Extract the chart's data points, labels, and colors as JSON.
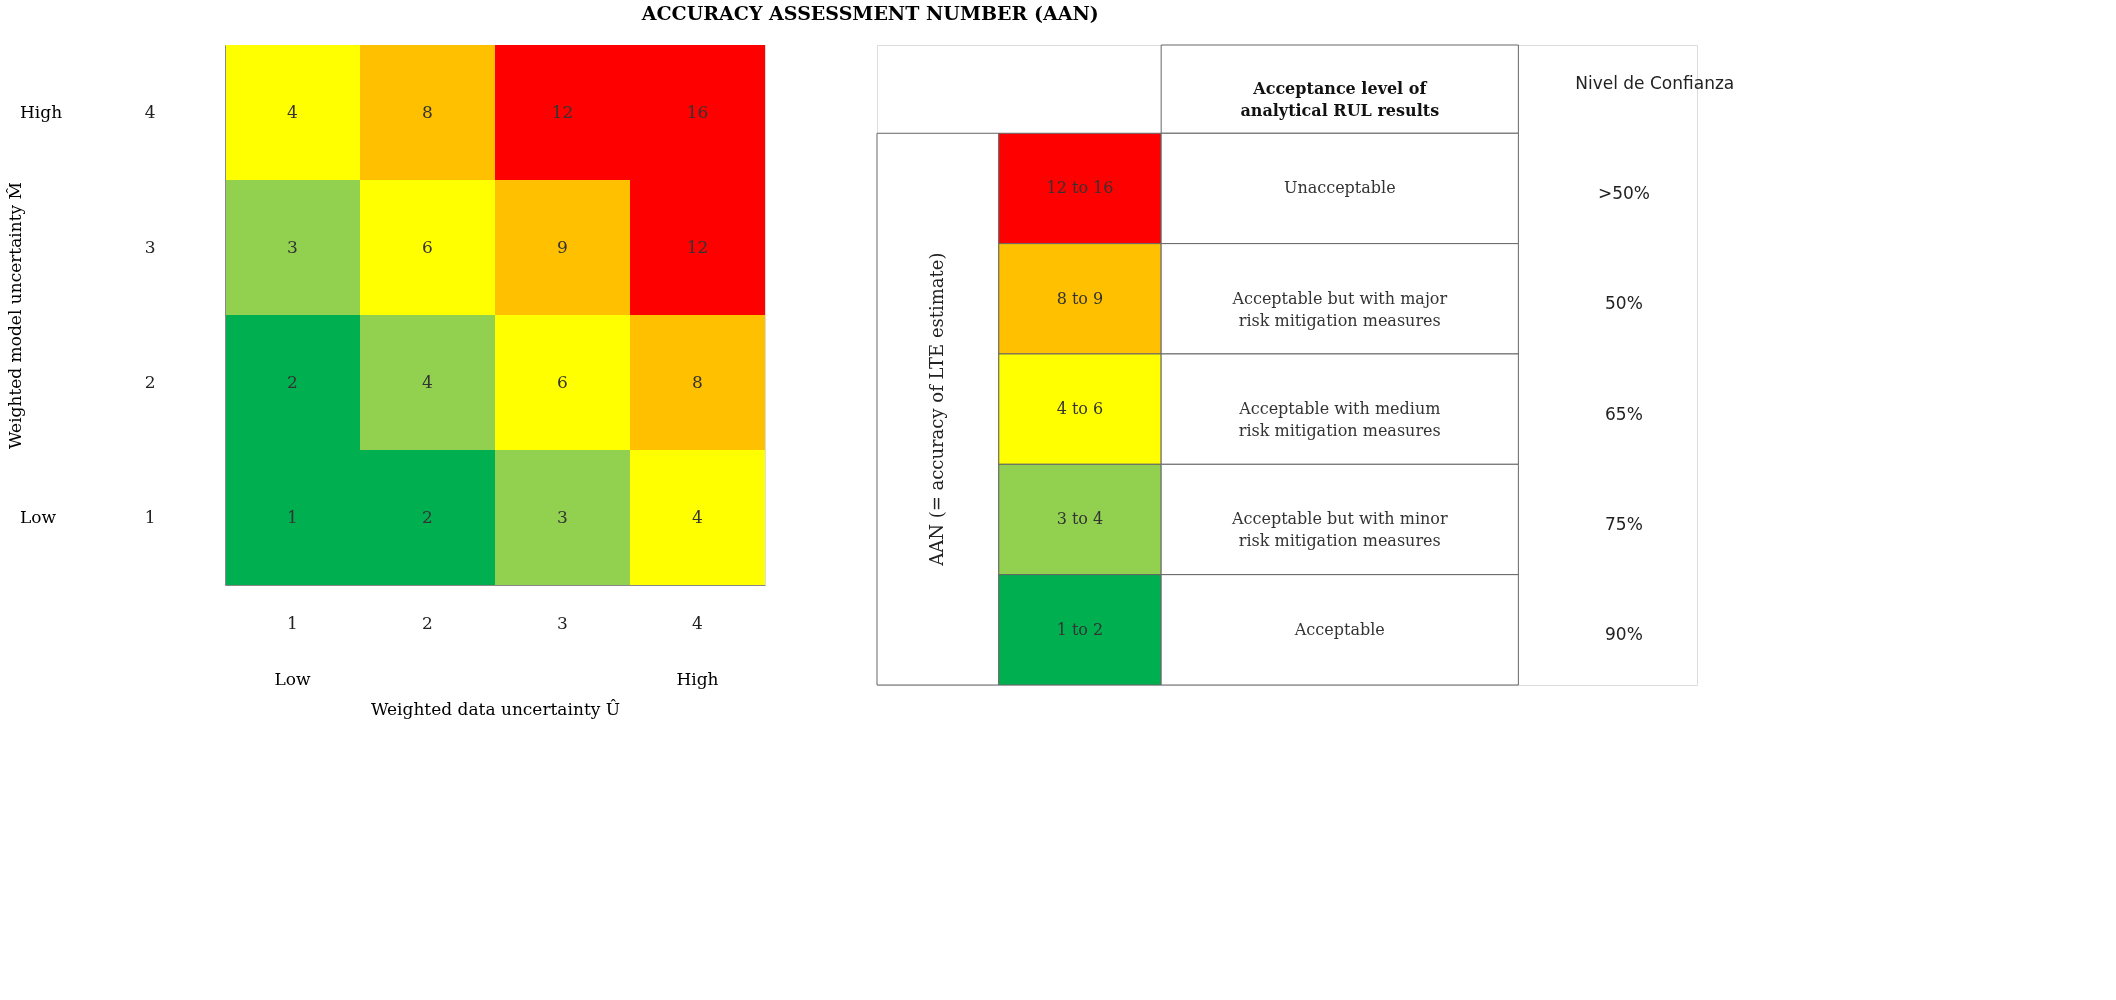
{
  "chart_data": [
    {
      "type": "heatmap",
      "title": "ACCURACY ASSESSMENT NUMBER (AAN)",
      "xlabel": "Weighted data uncertainty Û",
      "ylabel": "Weighted model uncertainty M̂",
      "categories": [
        "1",
        "2",
        "3",
        "4"
      ],
      "y_categories": [
        "4",
        "3",
        "2",
        "1"
      ],
      "cells": [
        [
          4,
          8,
          12,
          16
        ],
        [
          3,
          6,
          9,
          12
        ],
        [
          2,
          4,
          6,
          8
        ],
        [
          1,
          2,
          3,
          4
        ]
      ],
      "colors": [
        [
          "#ffff00",
          "#ffc000",
          "#ff0000",
          "#ff0000"
        ],
        [
          "#92d050",
          "#ffff00",
          "#ffc000",
          "#ff0000"
        ],
        [
          "#00b050",
          "#92d050",
          "#ffff00",
          "#ffc000"
        ],
        [
          "#00b050",
          "#00b050",
          "#92d050",
          "#ffff00"
        ]
      ],
      "data_labels": true,
      "annotations": [
        "High",
        "Low",
        "Low",
        "High"
      ]
    },
    {
      "type": "other",
      "title": "Acceptance level of analytical RUL results",
      "ylabel": "AAN (= accuracy of LTE estimate)",
      "y_categories": [
        "12 to 16",
        "8 to 9",
        "4 to 6",
        "3 to 4",
        "1 to 2"
      ],
      "y2_categories": [
        "Unacceptable",
        "Acceptable but with major risk mitigation measures",
        "Acceptable with medium risk mitigation measures",
        "Acceptable but with minor risk mitigation measures",
        "Acceptable"
      ],
      "colors": [
        "#ff0000",
        "#ffc000",
        "#ffff00",
        "#92d050",
        "#00b050"
      ],
      "annotations": [
        "Nivel de Confianza",
        ">50%",
        "50%",
        "65%",
        "75%",
        "90%"
      ]
    }
  ]
}
